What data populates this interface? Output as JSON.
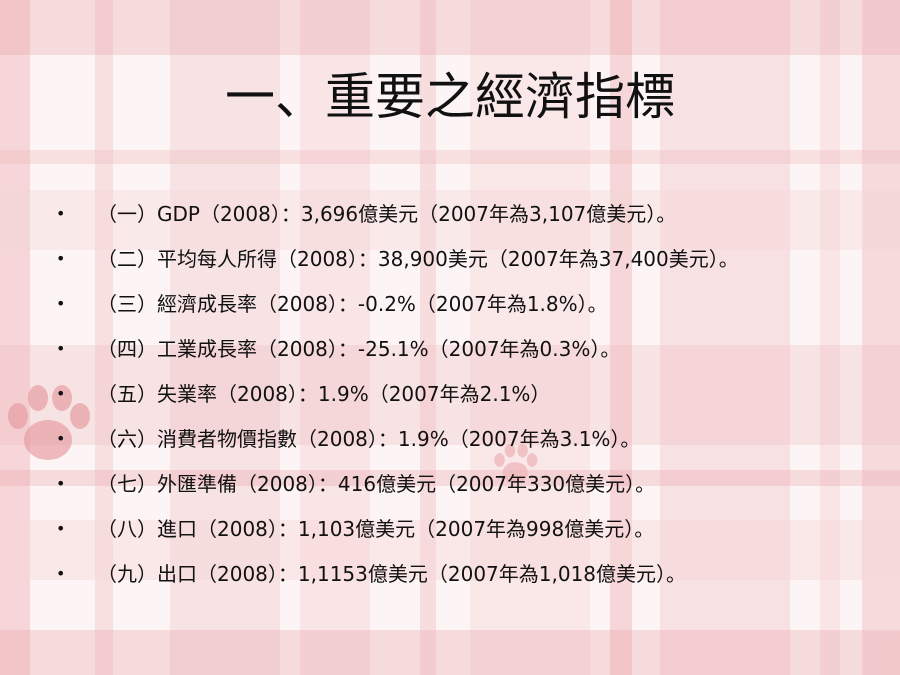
{
  "slide": {
    "title": "一、重要之經濟指標",
    "bullet_glyph": "•",
    "items": [
      "（一）GDP（2008）：3,696億美元（2007年為3,107億美元）。",
      "（二）平均每人所得（2008）：38,900美元（2007年為37,400美元）。",
      "（三）經濟成長率（2008）：-0.2%（2007年為1.8%）。",
      "（四）工業成長率（2008）：-25.1%（2007年為0.3%）。",
      "（五）失業率（2008）：1.9%（2007年為2.1%）",
      "（六）消費者物價指數（2008）：1.9%（2007年為3.1%）。",
      "（七）外匯準備（2008）：416億美元（2007年330億美元）。",
      "（八）進口（2008）：1,103億美元（2007年為998億美元）。",
      "（九）出口（2008）：1,1153億美元（2007年為1,018億美元）。"
    ]
  },
  "background": {
    "pattern": "pink-plaid",
    "decoration": "paw-print-icon",
    "colors": {
      "base": "#fdf5f5",
      "band_light": "#f6d6d8",
      "band_mid": "#efb9bd",
      "band_dark": "#e79ea4",
      "text": "#111111"
    }
  }
}
